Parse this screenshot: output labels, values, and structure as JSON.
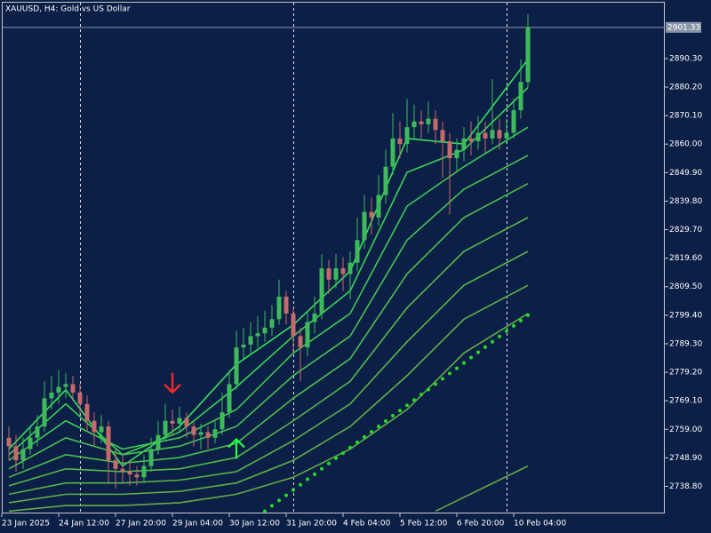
{
  "chart_data": {
    "type": "candlestick",
    "title": "XAUUSD, H4:  Gold vs US Dollar",
    "categories": [
      "23 Jan 2025",
      null,
      null,
      null,
      null,
      null,
      null,
      null,
      "24 Jan 12:00",
      null,
      null,
      null,
      null,
      null,
      null,
      null,
      "27 Jan 20:00",
      null,
      null,
      null,
      null,
      null,
      null,
      null,
      "29 Jan 04:00",
      null,
      null,
      null,
      null,
      null,
      null,
      null,
      "30 Jan 12:00",
      null,
      null,
      null,
      null,
      null,
      null,
      null,
      "31 Jan 20:00",
      null,
      null,
      null,
      null,
      null,
      null,
      null,
      "4 Feb 04:00",
      null,
      null,
      null,
      null,
      null,
      null,
      null,
      "5 Feb 12:00",
      null,
      null,
      null,
      null,
      null,
      null,
      null,
      "6 Feb 20:00",
      null,
      null,
      null,
      null,
      null,
      null,
      null,
      "10 Feb 04:00",
      null
    ],
    "open": [
      2756,
      2753,
      2748,
      2752,
      2756,
      2760,
      2770,
      2772,
      2774,
      2775,
      2772,
      2768,
      2762,
      2758,
      2760,
      2748,
      2745,
      2744,
      2743,
      2742,
      2746,
      2752,
      2757,
      2762,
      2761,
      2763,
      2760,
      2757,
      2758,
      2756,
      2759,
      2765,
      2775,
      2788,
      2789,
      2792,
      2793,
      2795,
      2798,
      2806,
      2800,
      2792,
      2788,
      2797,
      2800,
      2816,
      2812,
      2816,
      2814,
      2818,
      2826,
      2836,
      2834,
      2842,
      2852,
      2862,
      2860,
      2866,
      2868,
      2867,
      2869,
      2865,
      2861,
      2855,
      2858,
      2862,
      2861,
      2864,
      2862,
      2865,
      2862,
      2864,
      2872,
      2882
    ],
    "high": [
      2760,
      2757,
      2756,
      2760,
      2764,
      2776,
      2778,
      2780,
      2779,
      2778,
      2775,
      2771,
      2765,
      2764,
      2762,
      2752,
      2750,
      2748,
      2746,
      2750,
      2756,
      2762,
      2768,
      2766,
      2767,
      2765,
      2762,
      2761,
      2760,
      2762,
      2772,
      2780,
      2794,
      2795,
      2797,
      2799,
      2801,
      2803,
      2812,
      2808,
      2802,
      2795,
      2801,
      2806,
      2821,
      2819,
      2821,
      2820,
      2822,
      2834,
      2842,
      2841,
      2849,
      2858,
      2871,
      2868,
      2876,
      2874,
      2872,
      2875,
      2872,
      2868,
      2864,
      2862,
      2866,
      2868,
      2870,
      2868,
      2883,
      2869,
      2869,
      2876,
      2890,
      2906
    ],
    "low": [
      2748,
      2744,
      2745,
      2750,
      2753,
      2758,
      2766,
      2768,
      2770,
      2769,
      2764,
      2758,
      2753,
      2754,
      2740,
      2738,
      2740,
      2739,
      2739,
      2740,
      2744,
      2750,
      2755,
      2757,
      2758,
      2756,
      2753,
      2752,
      2752,
      2754,
      2757,
      2763,
      2773,
      2784,
      2786,
      2788,
      2790,
      2792,
      2796,
      2796,
      2786,
      2776,
      2785,
      2793,
      2798,
      2807,
      2809,
      2808,
      2805,
      2815,
      2823,
      2828,
      2831,
      2839,
      2849,
      2855,
      2857,
      2862,
      2862,
      2864,
      2860,
      2848,
      2835,
      2850,
      2854,
      2856,
      2858,
      2857,
      2860,
      2858,
      2860,
      2862,
      2869,
      2880
    ],
    "close": [
      2753,
      2748,
      2752,
      2756,
      2760,
      2770,
      2772,
      2774,
      2775,
      2772,
      2768,
      2762,
      2758,
      2760,
      2748,
      2745,
      2744,
      2743,
      2742,
      2746,
      2752,
      2757,
      2762,
      2761,
      2763,
      2760,
      2757,
      2758,
      2756,
      2759,
      2765,
      2775,
      2788,
      2789,
      2792,
      2793,
      2795,
      2798,
      2806,
      2800,
      2792,
      2788,
      2797,
      2800,
      2816,
      2812,
      2816,
      2814,
      2818,
      2826,
      2836,
      2834,
      2842,
      2852,
      2862,
      2860,
      2866,
      2868,
      2867,
      2869,
      2865,
      2861,
      2855,
      2858,
      2862,
      2861,
      2864,
      2862,
      2865,
      2862,
      2864,
      2872,
      2882,
      2901.33
    ],
    "up_color": "#3fba5b",
    "down_color": "#c46a6a",
    "ylim": [
      2729.2,
      2910.4
    ],
    "yticks": [
      {
        "value": 2890.3,
        "label": "2890.30"
      },
      {
        "value": 2880.2,
        "label": "2880.20"
      },
      {
        "value": 2870.1,
        "label": "2870.10"
      },
      {
        "value": 2860,
        "label": "2860.00"
      },
      {
        "value": 2849.9,
        "label": "2849.90"
      },
      {
        "value": 2839.8,
        "label": "2839.80"
      },
      {
        "value": 2829.7,
        "label": "2829.70"
      },
      {
        "value": 2819.6,
        "label": "2819.60"
      },
      {
        "value": 2809.5,
        "label": "2809.50"
      },
      {
        "value": 2799.4,
        "label": "2799.40"
      },
      {
        "value": 2789.3,
        "label": "2789.30"
      },
      {
        "value": 2779.2,
        "label": "2779.20"
      },
      {
        "value": 2769.1,
        "label": "2769.10"
      },
      {
        "value": 2759,
        "label": "2759.00"
      },
      {
        "value": 2748.9,
        "label": "2748.90"
      },
      {
        "value": 2738.8,
        "label": "2738.80"
      }
    ],
    "current_price": 2901.33,
    "grid": false,
    "lines": [
      {
        "color": "#35e05a",
        "x": [
          0,
          8,
          16,
          24,
          32,
          40,
          48,
          56,
          64,
          73
        ],
        "values": [
          2752,
          2773,
          2746,
          2760,
          2782,
          2796,
          2815,
          2862,
          2860,
          2890
        ]
      },
      {
        "color": "#3ad255",
        "x": [
          0,
          8,
          16,
          24,
          32,
          40,
          48,
          56,
          64,
          73
        ],
        "values": [
          2750,
          2768,
          2750,
          2758,
          2774,
          2792,
          2808,
          2850,
          2858,
          2880
        ]
      },
      {
        "color": "#3fc952",
        "x": [
          0,
          8,
          16,
          24,
          32,
          40,
          48,
          56,
          64,
          73
        ],
        "values": [
          2748,
          2762,
          2752,
          2756,
          2766,
          2786,
          2800,
          2838,
          2852,
          2866
        ]
      },
      {
        "color": "#45c450",
        "x": [
          0,
          8,
          16,
          24,
          32,
          40,
          48,
          56,
          64,
          73
        ],
        "values": [
          2745,
          2756,
          2750,
          2753,
          2760,
          2778,
          2792,
          2826,
          2844,
          2856
        ]
      },
      {
        "color": "#4cbf4d",
        "x": [
          0,
          8,
          16,
          24,
          32,
          40,
          48,
          56,
          64,
          73
        ],
        "values": [
          2742,
          2750,
          2747,
          2749,
          2754,
          2770,
          2784,
          2814,
          2834,
          2846
        ]
      },
      {
        "color": "#52ba4b",
        "x": [
          0,
          8,
          16,
          24,
          32,
          40,
          48,
          56,
          64,
          73
        ],
        "values": [
          2739,
          2745,
          2744,
          2745,
          2749,
          2762,
          2776,
          2802,
          2822,
          2834
        ]
      },
      {
        "color": "#58b549",
        "x": [
          0,
          8,
          16,
          24,
          32,
          40,
          48,
          56,
          64,
          73
        ],
        "values": [
          2736,
          2740,
          2740,
          2741,
          2744,
          2755,
          2768,
          2790,
          2810,
          2822
        ]
      },
      {
        "color": "#5db147",
        "x": [
          0,
          8,
          16,
          24,
          32,
          40,
          48,
          56,
          64,
          73
        ],
        "values": [
          2733,
          2736,
          2736,
          2737,
          2740,
          2748,
          2760,
          2778,
          2798,
          2810
        ]
      },
      {
        "color": "#62ad45",
        "x": [
          0,
          8,
          16,
          24,
          32,
          40,
          48,
          56,
          64,
          73
        ],
        "values": [
          2730,
          2732,
          2732,
          2733,
          2736,
          2742,
          2752,
          2766,
          2786,
          2800
        ]
      },
      {
        "color": "#66a843",
        "x": [
          60,
          73
        ],
        "values": [
          2730,
          2746
        ]
      }
    ],
    "dots": {
      "color": "#22dd22",
      "x": [
        36,
        37,
        38,
        39,
        40,
        41,
        42,
        43,
        44,
        45,
        46,
        47,
        48,
        49,
        50,
        51,
        52,
        53,
        54,
        55,
        56,
        57,
        58,
        59,
        60,
        61,
        62,
        63,
        64,
        65,
        66,
        67,
        68,
        69,
        70,
        71,
        72,
        73
      ],
      "values": [
        2730.0,
        2731.9,
        2733.8,
        2735.6,
        2737.5,
        2739.4,
        2741.3,
        2743.1,
        2745.0,
        2746.9,
        2748.8,
        2750.6,
        2752.5,
        2754.4,
        2756.3,
        2758.1,
        2760.0,
        2761.9,
        2763.8,
        2765.6,
        2767.5,
        2769.4,
        2771.3,
        2773.1,
        2775.0,
        2776.9,
        2778.8,
        2780.6,
        2782.5,
        2784.4,
        2786.3,
        2788.1,
        2790.0,
        2791.9,
        2793.8,
        2795.6,
        2797.5,
        2799.4
      ]
    },
    "markers": [
      {
        "x": 23,
        "value": 2775.5,
        "direction": "down",
        "color": "#ff2a2a"
      },
      {
        "x": 32,
        "value": 2752,
        "direction": "up",
        "color": "#22ff44"
      }
    ]
  }
}
